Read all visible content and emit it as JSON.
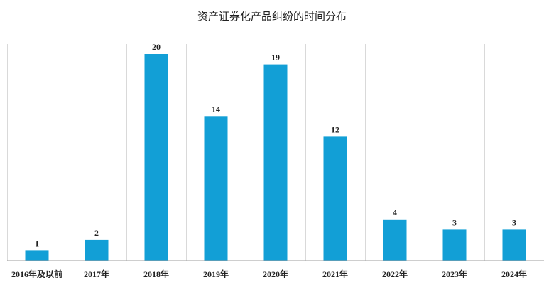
{
  "chart_data": {
    "type": "bar",
    "title": "资产证券化产品纠纷的时间分布",
    "categories": [
      "2016年及以前",
      "2017年",
      "2018年",
      "2019年",
      "2020年",
      "2021年",
      "2022年",
      "2023年",
      "2024年"
    ],
    "values": [
      1,
      2,
      20,
      14,
      19,
      12,
      4,
      3,
      3
    ],
    "ylim": [
      0,
      21
    ],
    "bar_color": "#129fd6",
    "grid": "vertical",
    "legend": "none"
  }
}
